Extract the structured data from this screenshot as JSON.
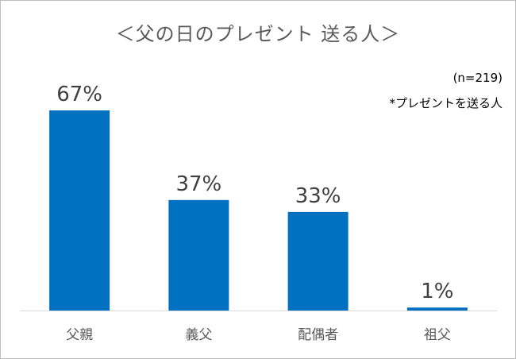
{
  "chart_data": {
    "type": "bar",
    "title": "＜父の日のプレゼント 送る人＞",
    "categories": [
      "父親",
      "義父",
      "配偶者",
      "祖父"
    ],
    "values": [
      67,
      37,
      33,
      1
    ],
    "data_labels": [
      "67%",
      "37%",
      "33%",
      "1%"
    ],
    "unit": "%",
    "ylim": [
      0,
      100
    ],
    "grid": false,
    "annotations": [
      "(n=219)",
      "*プレゼントを送る人"
    ],
    "bar_color": "#0070c0",
    "label_color": "#404040"
  }
}
